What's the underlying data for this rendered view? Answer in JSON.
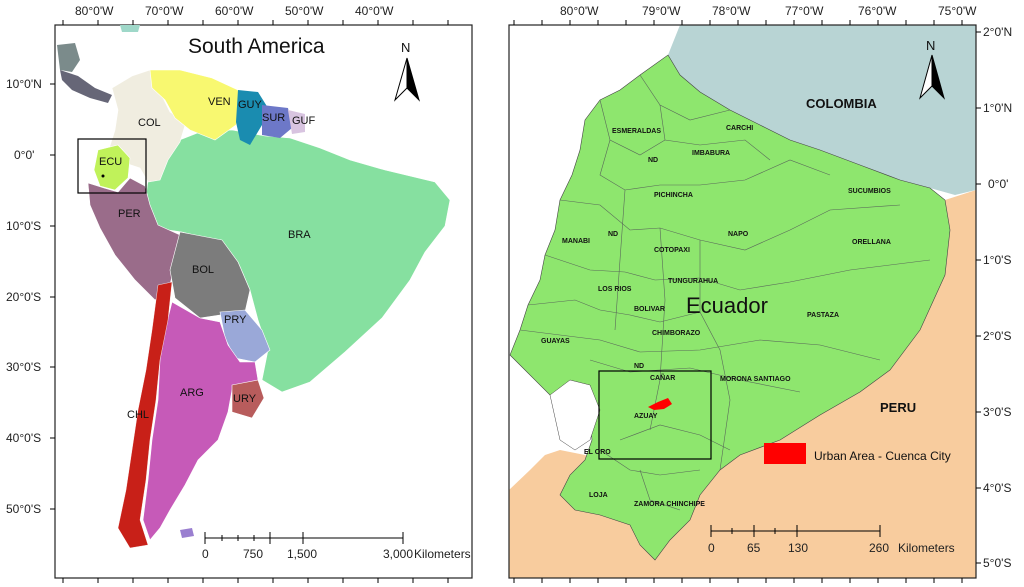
{
  "left_map": {
    "title": "South America",
    "north_label": "N",
    "lon_ticks": [
      "80°0'W",
      "70°0'W",
      "60°0'W",
      "50°0'W",
      "40°0'W"
    ],
    "lat_ticks": [
      "10°0'N",
      "0°0'",
      "10°0'S",
      "20°0'S",
      "30°0'S",
      "40°0'S",
      "50°0'S"
    ],
    "countries": {
      "COL": "COL",
      "VEN": "VEN",
      "GUY": "GUY",
      "SUR": "SUR",
      "GUF": "GUF",
      "ECU": "ECU",
      "PER": "PER",
      "BRA": "BRA",
      "BOL": "BOL",
      "PRY": "PRY",
      "ARG": "ARG",
      "CHL": "CHL",
      "URY": "URY"
    },
    "scale": {
      "labels": [
        "0",
        "750",
        "1,500",
        "3,000"
      ],
      "unit": "Kilometers"
    }
  },
  "right_map": {
    "title": "Ecuador",
    "north_label": "N",
    "lon_ticks": [
      "80°0'W",
      "79°0'W",
      "78°0'W",
      "77°0'W",
      "76°0'W",
      "75°0'W"
    ],
    "lat_ticks": [
      "2°0'N",
      "1°0'N",
      "0°0'",
      "1°0'S",
      "2°0'S",
      "3°0'S",
      "4°0'S",
      "5°0'S"
    ],
    "neighbors": {
      "colombia": "COLOMBIA",
      "peru": "PERU"
    },
    "provinces": {
      "esmeraldas": "ESMERALDAS",
      "carchi": "CARCHI",
      "imbabura": "IMBABURA",
      "nd1": "ND",
      "pichincha": "PICHINCHA",
      "sucumbios": "SUCUMBIOS",
      "nd2": "ND",
      "manabi": "MANABI",
      "cotopaxi": "COTOPAXI",
      "napo": "NAPO",
      "orellana": "ORELLANA",
      "tungurahua": "TUNGURAHUA",
      "los_rios": "LOS RIOS",
      "bolivar": "BOLIVAR",
      "chimborazo": "CHIMBORAZO",
      "pastaza": "PASTAZA",
      "guayas": "GUAYAS",
      "nd3": "ND",
      "canar": "CAÑAR",
      "morona": "MORONA SANTIAGO",
      "azuay": "AZUAY",
      "el_oro": "EL ORO",
      "loja": "LOJA",
      "zamora": "ZAMORA CHINCHIPE"
    },
    "legend": {
      "label": "Urban Area - Cuenca City",
      "color": "#ff0000"
    },
    "scale": {
      "labels": [
        "0",
        "65",
        "130",
        "260"
      ],
      "unit": "Kilometers"
    }
  },
  "colors": {
    "ecuador": "#8ee66e",
    "colombia_sea": "#b8d4d4",
    "peru": "#f8cc9e",
    "brazil": "#86e0a0",
    "urban": "#ff0000"
  }
}
